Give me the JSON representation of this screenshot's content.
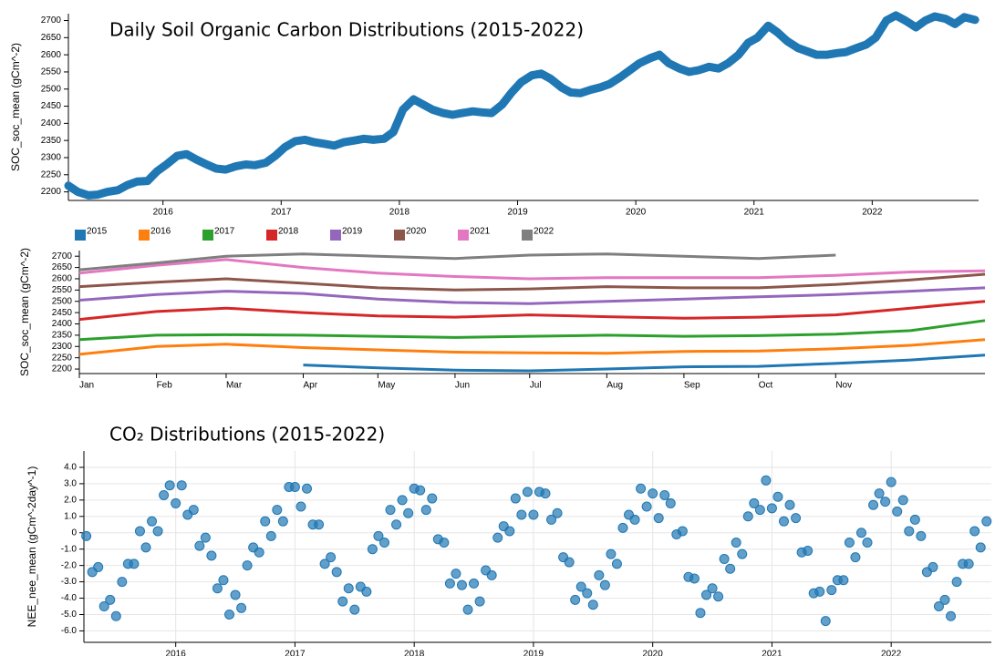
{
  "chart_data": [
    {
      "type": "line",
      "title": "Daily Soil Organic Carbon Distributions (2015-2022)",
      "y_label": "SOC_soc_mean (gCm^-2)",
      "color": "#1f77b4",
      "x": [
        2015.2,
        2015.28,
        2015.37,
        2015.45,
        2015.53,
        2015.62,
        2015.7,
        2015.78,
        2015.87,
        2015.95,
        2016.03,
        2016.12,
        2016.2,
        2016.28,
        2016.37,
        2016.45,
        2016.53,
        2016.62,
        2016.7,
        2016.78,
        2016.87,
        2016.95,
        2017.03,
        2017.12,
        2017.2,
        2017.28,
        2017.37,
        2017.45,
        2017.53,
        2017.62,
        2017.7,
        2017.78,
        2017.87,
        2017.95,
        2018.03,
        2018.12,
        2018.2,
        2018.28,
        2018.37,
        2018.45,
        2018.53,
        2018.62,
        2018.7,
        2018.78,
        2018.87,
        2018.95,
        2019.03,
        2019.12,
        2019.2,
        2019.28,
        2019.37,
        2019.45,
        2019.53,
        2019.62,
        2019.7,
        2019.78,
        2019.87,
        2019.95,
        2020.03,
        2020.12,
        2020.2,
        2020.28,
        2020.37,
        2020.45,
        2020.53,
        2020.62,
        2020.7,
        2020.78,
        2020.87,
        2020.95,
        2021.03,
        2021.12,
        2021.2,
        2021.28,
        2021.37,
        2021.45,
        2021.53,
        2021.62,
        2021.7,
        2021.78,
        2021.87,
        2021.95,
        2022.03,
        2022.12,
        2022.2,
        2022.28,
        2022.37,
        2022.45,
        2022.53,
        2022.62,
        2022.7,
        2022.78,
        2022.87
      ],
      "values": [
        2218,
        2200,
        2190,
        2192,
        2200,
        2205,
        2220,
        2230,
        2232,
        2260,
        2280,
        2305,
        2310,
        2295,
        2280,
        2268,
        2265,
        2275,
        2280,
        2278,
        2285,
        2305,
        2330,
        2348,
        2352,
        2345,
        2340,
        2335,
        2345,
        2350,
        2355,
        2352,
        2355,
        2375,
        2440,
        2470,
        2455,
        2440,
        2430,
        2425,
        2430,
        2435,
        2432,
        2430,
        2455,
        2490,
        2520,
        2540,
        2545,
        2530,
        2505,
        2490,
        2488,
        2498,
        2505,
        2515,
        2535,
        2555,
        2575,
        2590,
        2600,
        2575,
        2560,
        2550,
        2555,
        2565,
        2560,
        2575,
        2600,
        2635,
        2650,
        2685,
        2665,
        2640,
        2620,
        2610,
        2600,
        2600,
        2605,
        2608,
        2620,
        2630,
        2650,
        2700,
        2715,
        2700,
        2680,
        2700,
        2712,
        2705,
        2690,
        2710,
        2702
      ],
      "xlim": [
        2015.2,
        2022.9
      ],
      "xticks": [
        2016,
        2017,
        2018,
        2019,
        2020,
        2021,
        2022
      ],
      "ylim": [
        2175,
        2720
      ],
      "yticks": [
        2200,
        2250,
        2300,
        2350,
        2400,
        2450,
        2500,
        2550,
        2600,
        2650,
        2700
      ],
      "grid": false
    },
    {
      "type": "line",
      "y_label": "SOC_soc_mean (gCm^-2)",
      "legend": "top-left",
      "x": [
        1,
        32,
        60,
        91,
        121,
        152,
        182,
        213,
        244,
        274,
        305,
        335,
        365
      ],
      "xlim": [
        1,
        365
      ],
      "xticks": [
        {
          "value": 1,
          "label": "Jan"
        },
        {
          "value": 32,
          "label": "Feb"
        },
        {
          "value": 60,
          "label": "Mar"
        },
        {
          "value": 91,
          "label": "Apr"
        },
        {
          "value": 121,
          "label": "May"
        },
        {
          "value": 152,
          "label": "Jun"
        },
        {
          "value": 182,
          "label": "Jul"
        },
        {
          "value": 213,
          "label": "Aug"
        },
        {
          "value": 244,
          "label": "Sep"
        },
        {
          "value": 274,
          "label": "Oct"
        },
        {
          "value": 305,
          "label": "Nov"
        }
      ],
      "ylim": [
        2180,
        2725
      ],
      "yticks": [
        2200,
        2250,
        2300,
        2350,
        2400,
        2450,
        2500,
        2550,
        2600,
        2650,
        2700
      ],
      "grid": false,
      "series": [
        {
          "name": "2015",
          "color": "#1f77b4",
          "values": [
            null,
            null,
            null,
            2218,
            2205,
            2195,
            2192,
            2200,
            2210,
            2212,
            2225,
            2240,
            2262
          ]
        },
        {
          "name": "2016",
          "color": "#ff7f0e",
          "values": [
            2265,
            2300,
            2310,
            2295,
            2285,
            2275,
            2272,
            2270,
            2278,
            2280,
            2290,
            2305,
            2330
          ]
        },
        {
          "name": "2017",
          "color": "#2ca02c",
          "values": [
            2330,
            2350,
            2352,
            2350,
            2345,
            2340,
            2345,
            2350,
            2345,
            2348,
            2355,
            2370,
            2415
          ]
        },
        {
          "name": "2018",
          "color": "#d62728",
          "values": [
            2420,
            2455,
            2470,
            2450,
            2435,
            2430,
            2440,
            2432,
            2425,
            2430,
            2440,
            2470,
            2500
          ]
        },
        {
          "name": "2019",
          "color": "#9467bd",
          "values": [
            2505,
            2530,
            2545,
            2535,
            2510,
            2495,
            2490,
            2500,
            2510,
            2520,
            2530,
            2545,
            2560
          ]
        },
        {
          "name": "2020",
          "color": "#8c564b",
          "values": [
            2565,
            2585,
            2600,
            2580,
            2560,
            2550,
            2555,
            2565,
            2560,
            2560,
            2575,
            2595,
            2620
          ]
        },
        {
          "name": "2021",
          "color": "#e377c2",
          "values": [
            2625,
            2660,
            2685,
            2650,
            2625,
            2610,
            2600,
            2605,
            2605,
            2605,
            2615,
            2630,
            2635
          ]
        },
        {
          "name": "2022",
          "color": "#7f7f7f",
          "values": [
            2640,
            2670,
            2700,
            2710,
            2700,
            2690,
            2705,
            2710,
            2700,
            2690,
            2705,
            null,
            null
          ]
        }
      ]
    },
    {
      "type": "scatter",
      "title": "CO₂ Distributions (2015-2022)",
      "y_label": "NEE_nee_mean (gCm^-2day^-1)",
      "color": "#1f77b4",
      "grid": true,
      "x": [
        2015.25,
        2015.3,
        2015.35,
        2015.4,
        2015.45,
        2015.5,
        2015.55,
        2015.6,
        2015.65,
        2015.7,
        2015.75,
        2015.8,
        2015.85,
        2015.9,
        2015.95,
        2016.0,
        2016.05,
        2016.1,
        2016.15,
        2016.2,
        2016.25,
        2016.3,
        2016.35,
        2016.4,
        2016.45,
        2016.5,
        2016.55,
        2016.6,
        2016.65,
        2016.7,
        2016.75,
        2016.8,
        2016.85,
        2016.9,
        2016.95,
        2017.0,
        2017.05,
        2017.1,
        2017.15,
        2017.2,
        2017.25,
        2017.3,
        2017.35,
        2017.4,
        2017.45,
        2017.5,
        2017.55,
        2017.6,
        2017.65,
        2017.7,
        2017.75,
        2017.8,
        2017.85,
        2017.9,
        2017.95,
        2018.0,
        2018.05,
        2018.1,
        2018.15,
        2018.2,
        2018.25,
        2018.3,
        2018.35,
        2018.4,
        2018.45,
        2018.5,
        2018.55,
        2018.6,
        2018.65,
        2018.7,
        2018.75,
        2018.8,
        2018.85,
        2018.9,
        2018.95,
        2019.0,
        2019.05,
        2019.1,
        2019.15,
        2019.2,
        2019.25,
        2019.3,
        2019.35,
        2019.4,
        2019.45,
        2019.5,
        2019.55,
        2019.6,
        2019.65,
        2019.7,
        2019.75,
        2019.8,
        2019.85,
        2019.9,
        2019.95,
        2020.0,
        2020.05,
        2020.1,
        2020.15,
        2020.2,
        2020.25,
        2020.3,
        2020.35,
        2020.4,
        2020.45,
        2020.5,
        2020.55,
        2020.6,
        2020.65,
        2020.7,
        2020.75,
        2020.8,
        2020.85,
        2020.9,
        2020.95,
        2021.0,
        2021.05,
        2021.1,
        2021.15,
        2021.2,
        2021.25,
        2021.3,
        2021.35,
        2021.4,
        2021.45,
        2021.5,
        2021.55,
        2021.6,
        2021.65,
        2021.7,
        2021.75,
        2021.8,
        2021.85,
        2021.9,
        2021.95,
        2022.0,
        2022.05,
        2022.1,
        2022.15,
        2022.2,
        2022.25,
        2022.3,
        2022.35,
        2022.4,
        2022.45,
        2022.5,
        2022.55,
        2022.6,
        2022.65,
        2022.7,
        2022.75,
        2022.8
      ],
      "values": [
        -0.2,
        -2.4,
        -2.1,
        -4.5,
        -4.1,
        -5.1,
        -3.0,
        -1.9,
        -1.9,
        0.1,
        -0.9,
        0.7,
        0.1,
        2.3,
        2.9,
        1.8,
        2.9,
        1.1,
        1.4,
        -0.8,
        -0.3,
        -1.4,
        -3.4,
        -2.9,
        -5.0,
        -3.8,
        -4.6,
        -2.0,
        -0.9,
        -1.2,
        0.7,
        -0.2,
        1.4,
        0.7,
        2.8,
        2.8,
        1.6,
        2.7,
        0.5,
        0.5,
        -1.9,
        -1.5,
        -2.4,
        -4.2,
        -3.4,
        -4.7,
        -3.3,
        -3.6,
        -1.0,
        -0.2,
        -0.6,
        1.4,
        0.5,
        2.0,
        1.2,
        2.7,
        2.6,
        1.4,
        2.1,
        -0.4,
        -0.6,
        -3.1,
        -2.5,
        -3.2,
        -4.7,
        -3.1,
        -4.2,
        -2.3,
        -2.6,
        -0.3,
        0.4,
        0.1,
        2.1,
        1.1,
        2.5,
        1.1,
        2.5,
        2.4,
        0.8,
        1.2,
        -1.5,
        -1.8,
        -4.1,
        -3.3,
        -3.7,
        -4.4,
        -2.6,
        -3.2,
        -1.3,
        -1.9,
        0.3,
        1.1,
        0.8,
        2.7,
        1.6,
        2.4,
        0.9,
        2.3,
        1.8,
        -0.1,
        0.1,
        -2.7,
        -2.8,
        -4.9,
        -3.8,
        -3.4,
        -3.9,
        -1.6,
        -2.2,
        -0.6,
        -1.3,
        1.0,
        1.8,
        1.4,
        3.2,
        1.5,
        2.2,
        0.7,
        1.7,
        0.9,
        -1.2,
        -1.1,
        -3.7,
        -3.6,
        -5.4,
        -3.5,
        -2.9,
        -2.9,
        -0.6,
        -1.5,
        0.0,
        -0.6,
        1.7,
        2.4,
        1.9,
        3.1,
        1.3,
        2.0,
        0.1,
        0.8,
        -0.2,
        -2.4,
        -2.1,
        -4.5,
        -4.1,
        -5.1,
        -3.0,
        -1.9,
        -1.9,
        0.1,
        -0.9,
        0.7
      ],
      "xlim": [
        2015.23,
        2022.84
      ],
      "xticks": [
        2016,
        2017,
        2018,
        2019,
        2020,
        2021,
        2022
      ],
      "ylim": [
        -6.7,
        5
      ],
      "yticks": [
        {
          "value": 4,
          "label": "4.0"
        },
        {
          "value": 3,
          "label": "3.0"
        },
        {
          "value": 2,
          "label": "2.0"
        },
        {
          "value": 1,
          "label": "1.0"
        },
        0,
        {
          "value": -1,
          "label": "-1.0"
        },
        {
          "value": -2,
          "label": "-2.0"
        },
        {
          "value": -3,
          "label": "-3.0"
        },
        {
          "value": -4,
          "label": "-4.0"
        },
        {
          "value": -5,
          "label": "-5.0"
        },
        {
          "value": -6,
          "label": "-6.0"
        }
      ]
    }
  ]
}
